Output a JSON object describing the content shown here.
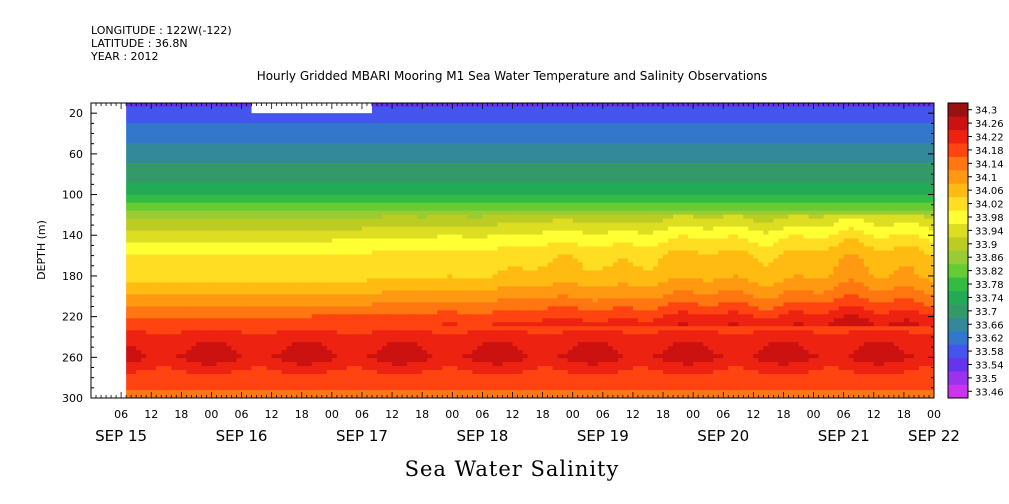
{
  "header": {
    "longitude": "LONGITUDE : 122W(-122)",
    "latitude": "LATITUDE : 36.8N",
    "year": "YEAR : 2012",
    "title": "Hourly Gridded MBARI Mooring M1 Sea Water Temperature and Salinity Observations"
  },
  "footer": {
    "variable_title": "Sea Water Salinity"
  },
  "chart_data": {
    "type": "heatmap",
    "title": "Hourly Gridded MBARI Mooring M1 Sea Water Temperature and Salinity Observations",
    "xlabel": "",
    "ylabel": "DEPTH (m)",
    "variable": "Sea Water Salinity",
    "x_range_hours": [
      0,
      168
    ],
    "x_start": "SEP 15 00h",
    "y_range": [
      10,
      300
    ],
    "y_reversed": true,
    "y_ticks": [
      20,
      60,
      100,
      140,
      180,
      220,
      260,
      300
    ],
    "x_hour_ticks": [
      "06",
      "12",
      "18",
      "00",
      "06",
      "12",
      "18",
      "00",
      "06",
      "12",
      "18",
      "00",
      "06",
      "12",
      "18",
      "00",
      "06",
      "12",
      "18",
      "00",
      "06",
      "12",
      "18",
      "00",
      "06",
      "12",
      "18",
      "00"
    ],
    "x_day_labels": [
      "SEP 15",
      "SEP 16",
      "SEP 17",
      "SEP 18",
      "SEP 19",
      "SEP 20",
      "SEP 21",
      "SEP 22"
    ],
    "no_data_regions": [
      {
        "x_hours": [
          0,
          7
        ],
        "depth": [
          10,
          300
        ]
      },
      {
        "x_hours": [
          32,
          56
        ],
        "depth": [
          10,
          20
        ]
      }
    ],
    "colorbar": {
      "levels": [
        33.46,
        33.5,
        33.54,
        33.58,
        33.62,
        33.66,
        33.7,
        33.74,
        33.78,
        33.82,
        33.86,
        33.9,
        33.94,
        33.98,
        34.02,
        34.06,
        34.1,
        34.14,
        34.18,
        34.22,
        34.26,
        34.3
      ],
      "colors": [
        "#cc33ee",
        "#9933ee",
        "#6633ee",
        "#4455ee",
        "#3377cc",
        "#338899",
        "#339966",
        "#22aa55",
        "#33bb44",
        "#66cc33",
        "#99cc33",
        "#bbcc22",
        "#dddd22",
        "#ffff33",
        "#ffdd22",
        "#ffbb11",
        "#ff9911",
        "#ff7711",
        "#ff4411",
        "#ee2211",
        "#cc1111",
        "#991111"
      ]
    },
    "profile_approx": {
      "depths": [
        10,
        20,
        40,
        60,
        80,
        100,
        120,
        140,
        160,
        180,
        200,
        220,
        240,
        260,
        280,
        300
      ],
      "salinity": [
        33.56,
        33.6,
        33.64,
        33.68,
        33.72,
        33.78,
        33.88,
        33.96,
        34.02,
        34.04,
        34.1,
        34.18,
        34.24,
        34.27,
        34.2,
        34.17
      ]
    }
  }
}
